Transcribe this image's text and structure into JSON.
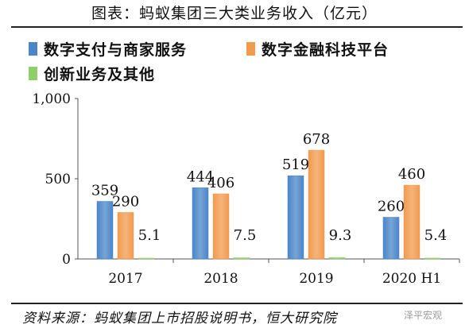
{
  "title": "图表：蚂蚁集团三大类业务收入（亿元）",
  "source": "资料来源：蚂蚁集团上市招股说明书，恒大研究院",
  "watermark": "泽平宏观",
  "colors": {
    "series1": "#4a86c8",
    "series2": "#f29a4e",
    "series3": "#8fcf6a"
  },
  "chart_data": {
    "type": "bar",
    "categories": [
      "2017",
      "2018",
      "2019",
      "2020 H1"
    ],
    "series": [
      {
        "name": "数字支付与商家服务",
        "values": [
          359,
          444,
          519,
          260
        ],
        "labels": [
          "359",
          "444",
          "519",
          "260"
        ]
      },
      {
        "name": "数字金融科技平台",
        "values": [
          290,
          406,
          678,
          460
        ],
        "labels": [
          "290",
          "406",
          "678",
          "460"
        ]
      },
      {
        "name": "创新业务及其他",
        "values": [
          5.1,
          7.5,
          9.3,
          5.4
        ],
        "labels": [
          "5.1",
          "7.5",
          "9.3",
          "5.4"
        ]
      }
    ],
    "yticks": [
      "0",
      "500",
      "1,000"
    ],
    "ytick_values": [
      0,
      500,
      1000
    ],
    "ylim": [
      0,
      1000
    ],
    "legend_position": "top-left",
    "grid": false
  }
}
